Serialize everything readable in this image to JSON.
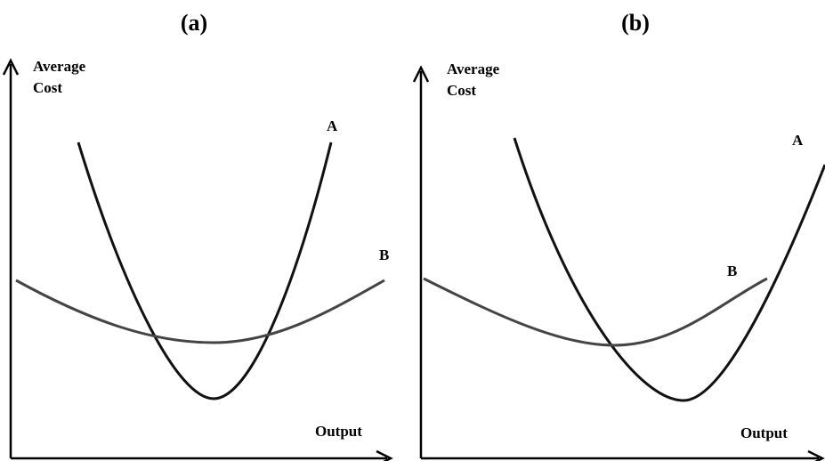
{
  "panels": [
    {
      "label": "(a)",
      "y_axis": [
        "Average",
        "Cost"
      ],
      "x_axis": "Output",
      "curves": [
        "A",
        "B"
      ]
    },
    {
      "label": "(b)",
      "y_axis": [
        "Average",
        "Cost"
      ],
      "x_axis": "Output",
      "curves": [
        "A",
        "B"
      ]
    }
  ]
}
